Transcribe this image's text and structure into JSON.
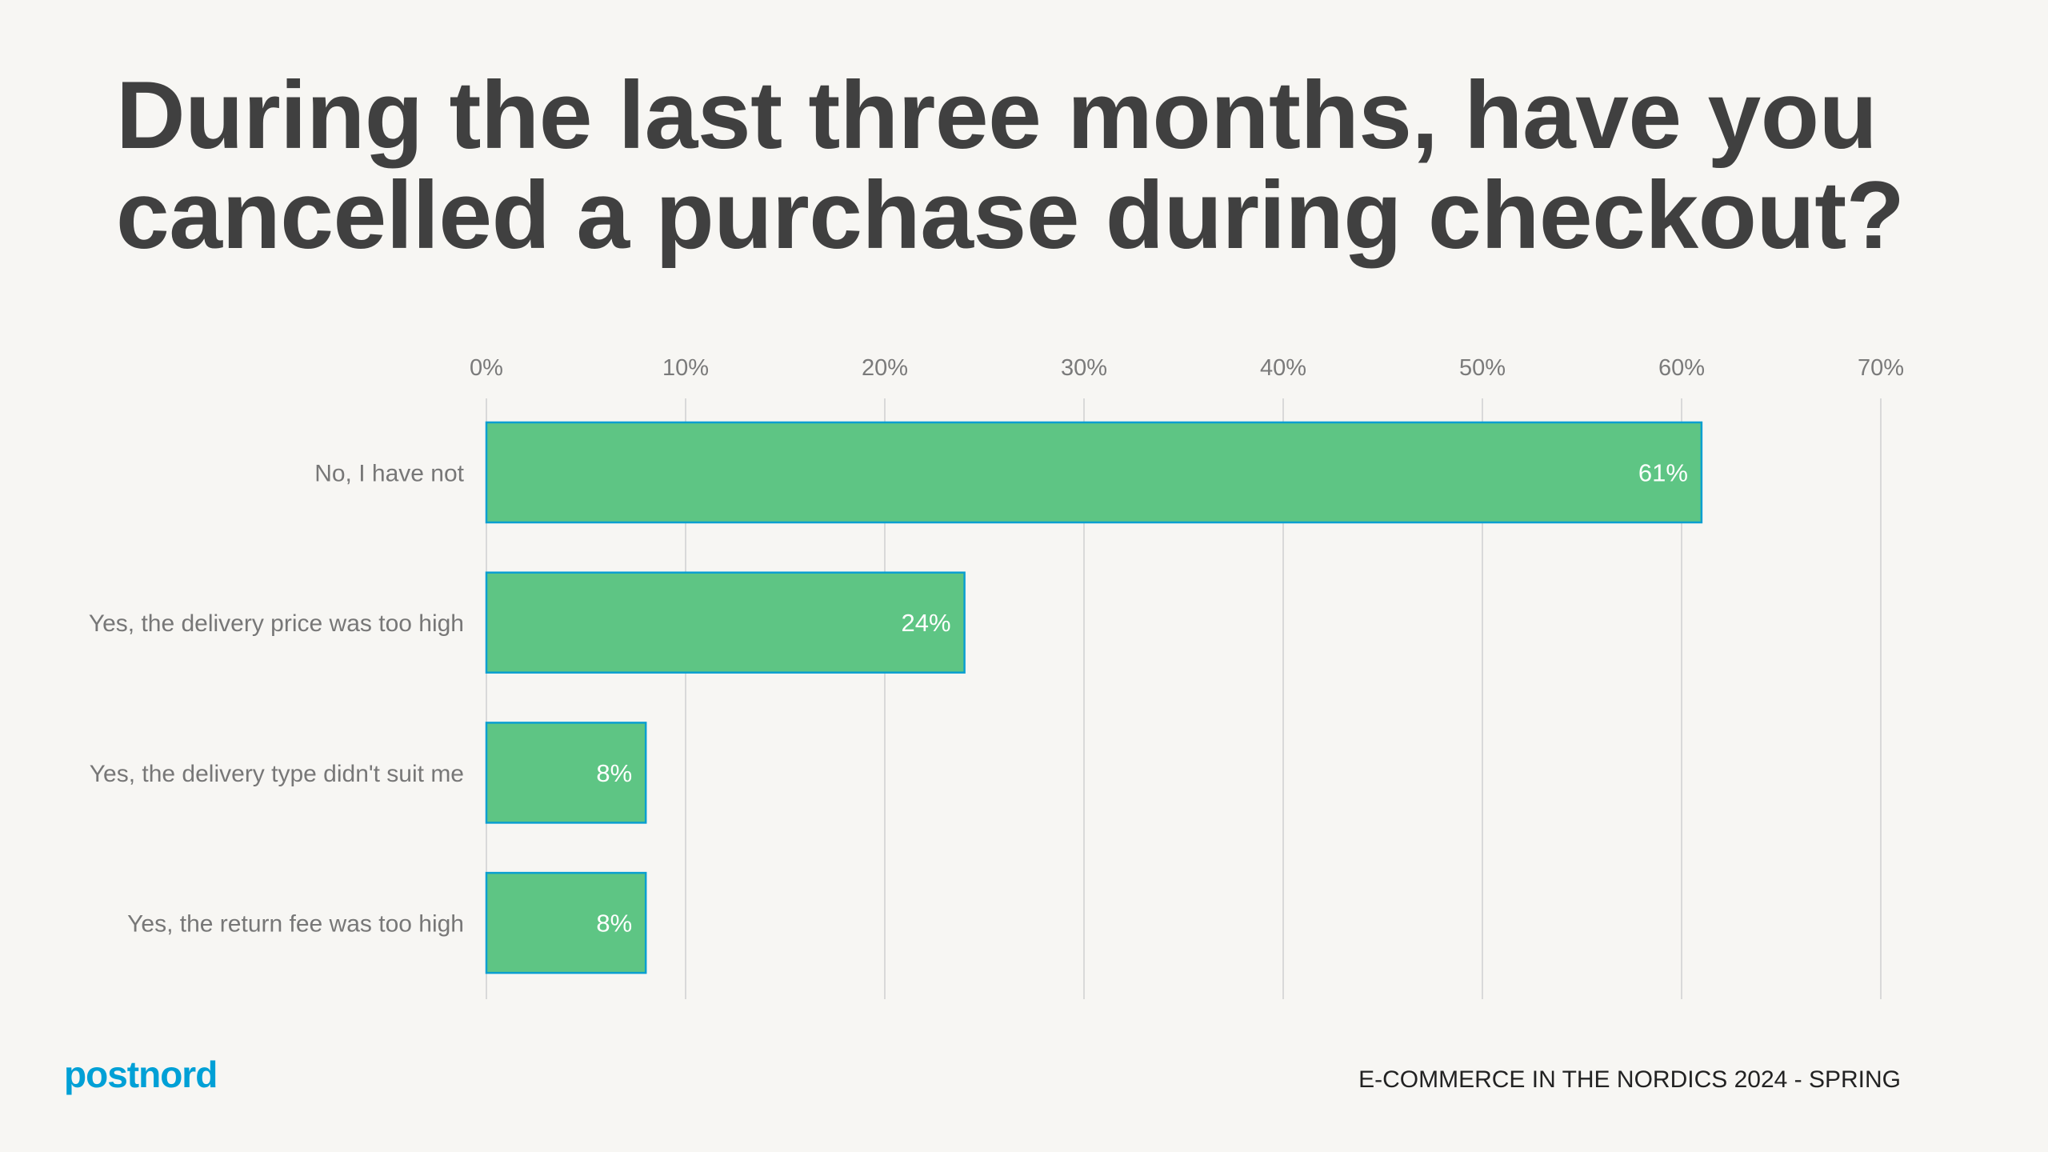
{
  "title": [
    "During the last three months, have you",
    "cancelled a purchase during checkout?"
  ],
  "chart_data": {
    "type": "bar",
    "orientation": "horizontal",
    "categories": [
      "No, I have not",
      "Yes, the delivery price was too high",
      "Yes, the delivery type didn't suit me",
      "Yes, the return fee was too high"
    ],
    "values": [
      61,
      24,
      8,
      8
    ],
    "data_labels": [
      "61%",
      "24%",
      "8%",
      "8%"
    ],
    "xlim": [
      0,
      70
    ],
    "x_ticks": [
      "0%",
      "10%",
      "20%",
      "30%",
      "40%",
      "50%",
      "60%",
      "70%"
    ],
    "x_axis_position": "top",
    "grid": true,
    "bar_color": "#5ec584",
    "bar_edge_color": "#0a9fd0"
  },
  "logo": "postnord",
  "logo_color": "#00a0d6",
  "footer": "E-COMMERCE IN THE NORDICS 2024 - SPRING"
}
